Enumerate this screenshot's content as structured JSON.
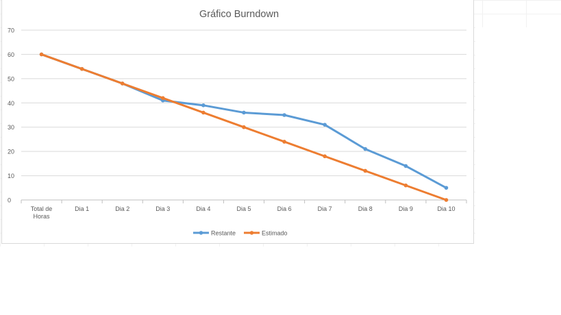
{
  "chart_data": {
    "type": "line",
    "title": "Gráfico Burndown",
    "categories": [
      [
        "Total de",
        "Horas"
      ],
      [
        "Dia 1"
      ],
      [
        "Dia 2"
      ],
      [
        "Dia 3"
      ],
      [
        "Dia 4"
      ],
      [
        "Dia 5"
      ],
      [
        "Dia 6"
      ],
      [
        "Dia 7"
      ],
      [
        "Dia 8"
      ],
      [
        "Dia 9"
      ],
      [
        "Dia 10"
      ]
    ],
    "ylim": [
      0,
      70
    ],
    "yticks": [
      0,
      10,
      20,
      30,
      40,
      50,
      60,
      70
    ],
    "grid": true,
    "legend": "bottom-center",
    "series": [
      {
        "name": "Restante",
        "color": "#5B9BD5",
        "values": [
          60,
          54,
          48,
          41,
          39,
          36,
          35,
          31,
          21,
          14,
          5
        ]
      },
      {
        "name": "Estimado",
        "color": "#ED7D31",
        "values": [
          60,
          54,
          48,
          42,
          36,
          30,
          24,
          18,
          12,
          6,
          0
        ]
      }
    ]
  }
}
